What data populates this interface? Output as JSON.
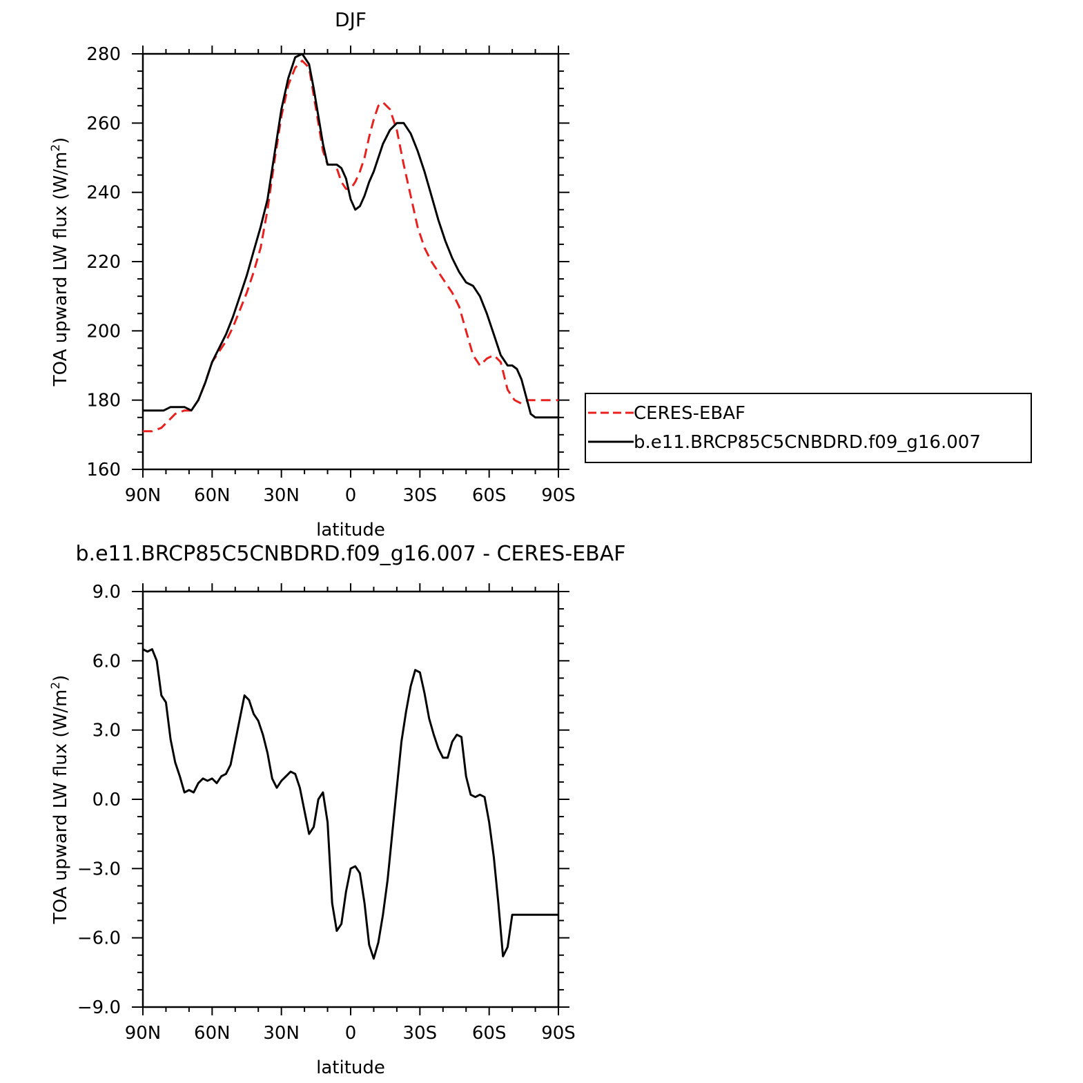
{
  "chart_data": [
    {
      "type": "line",
      "title": "DJF",
      "xlabel": "latitude",
      "ylabel": "TOA upward LW flux (W/m²)",
      "ylabel_main": "TOA upward LW flux (W/m",
      "ylabel_sup": "2",
      "ylabel_close": ")",
      "xlim": [
        90,
        -90
      ],
      "ylim": [
        160,
        280
      ],
      "x_ticks": [
        90,
        60,
        30,
        0,
        -30,
        -60,
        -90
      ],
      "x_tick_labels": [
        "90N",
        "60N",
        "30N",
        "0",
        "30S",
        "60S",
        "90S"
      ],
      "y_ticks": [
        160,
        180,
        200,
        220,
        240,
        260,
        280
      ],
      "y_tick_labels": [
        "160",
        "180",
        "200",
        "220",
        "240",
        "260",
        "280"
      ],
      "grid": false,
      "legend": "right",
      "series": [
        {
          "name": "CERES-EBAF",
          "color": "#e8211f",
          "dash": "dashed",
          "x": [
            90,
            86,
            82,
            79,
            76,
            72,
            69,
            66,
            63,
            60,
            57,
            54,
            51,
            48,
            45,
            42,
            39,
            36,
            33,
            30,
            27,
            24,
            21,
            18,
            16,
            14,
            12,
            10,
            8,
            6,
            4,
            2,
            0,
            -2,
            -4,
            -6,
            -8,
            -10,
            -12,
            -14,
            -17,
            -20,
            -23,
            -26,
            -29,
            -32,
            -35,
            -38,
            -41,
            -44,
            -47,
            -50,
            -53,
            -56,
            -59,
            -62,
            -65,
            -68,
            -71,
            -74,
            -77,
            -80,
            -82,
            -84,
            -86,
            -88,
            -90
          ],
          "y": [
            171,
            171,
            172,
            174,
            176,
            177,
            177,
            180,
            185,
            191,
            194,
            197,
            201,
            206,
            211,
            217,
            224,
            235,
            249,
            262,
            271,
            276,
            278,
            276,
            268,
            260,
            252,
            248,
            248,
            247,
            243,
            241,
            241,
            243,
            246,
            250,
            256,
            261,
            265,
            266,
            264,
            258,
            248,
            239,
            230,
            224,
            220,
            217,
            214,
            211,
            207,
            200,
            193,
            190,
            192,
            193,
            191,
            183,
            180,
            179,
            180,
            180,
            180,
            180,
            180,
            180,
            180
          ]
        },
        {
          "name": "b.e11.BRCP85C5CNBDRD.f09_g16.007",
          "color": "#000000",
          "dash": "solid",
          "x": [
            90,
            87,
            84,
            81,
            78,
            75,
            72,
            69,
            66,
            63,
            60,
            57,
            54,
            51,
            48,
            45,
            42,
            39,
            36,
            33,
            30,
            27,
            24,
            21,
            18,
            16,
            14,
            12,
            10,
            8,
            6,
            4,
            2,
            0,
            -2,
            -4,
            -6,
            -8,
            -10,
            -12,
            -14,
            -17,
            -20,
            -23,
            -26,
            -29,
            -32,
            -35,
            -38,
            -41,
            -44,
            -47,
            -50,
            -53,
            -56,
            -59,
            -62,
            -65,
            -68,
            -70,
            -72,
            -74,
            -76,
            -78,
            -80,
            -82,
            -84,
            -86,
            -88,
            -90
          ],
          "y": [
            177,
            177,
            177,
            177,
            178,
            178,
            178,
            177,
            180,
            185,
            191,
            195,
            199,
            204,
            210,
            216,
            223,
            230,
            238,
            251,
            264,
            273,
            279,
            280,
            277,
            270,
            262,
            254,
            248,
            248,
            248,
            247,
            244,
            238,
            235,
            236,
            239,
            243,
            246,
            250,
            254,
            258,
            260,
            260,
            257,
            252,
            246,
            239,
            232,
            226,
            221,
            217,
            214,
            213,
            210,
            205,
            199,
            193,
            190,
            190,
            189,
            186,
            181,
            176,
            175,
            175,
            175,
            175,
            175,
            175
          ]
        }
      ]
    },
    {
      "type": "line",
      "title": "b.e11.BRCP85C5CNBDRD.f09_g16.007 - CERES-EBAF",
      "xlabel": "latitude",
      "ylabel": "TOA upward LW flux (W/m²)",
      "ylabel_main": "TOA upward LW flux (W/m",
      "ylabel_sup": "2",
      "ylabel_close": ")",
      "xlim": [
        90,
        -90
      ],
      "ylim": [
        -9.0,
        9.0
      ],
      "x_ticks": [
        90,
        60,
        30,
        0,
        -30,
        -60,
        -90
      ],
      "x_tick_labels": [
        "90N",
        "60N",
        "30N",
        "0",
        "30S",
        "60S",
        "90S"
      ],
      "y_ticks": [
        -9,
        -6,
        -3,
        0,
        3,
        6,
        9
      ],
      "y_tick_labels": [
        "−9.0",
        "−6.0",
        "−3.0",
        "0.0",
        "3.0",
        "6.0",
        "9.0"
      ],
      "grid": false,
      "legend": "none",
      "series": [
        {
          "color": "#000000",
          "dash": "solid",
          "x": [
            90,
            88,
            86,
            84,
            82,
            80,
            78,
            76,
            74,
            72,
            70,
            68,
            66,
            64,
            62,
            60,
            58,
            56,
            54,
            52,
            50,
            48,
            46,
            44,
            42,
            40,
            38,
            36,
            34,
            32,
            30,
            28,
            26,
            24,
            22,
            20,
            18,
            16,
            14,
            12,
            10,
            8,
            6,
            4,
            2,
            0,
            -2,
            -4,
            -6,
            -8,
            -10,
            -12,
            -14,
            -16,
            -18,
            -20,
            -22,
            -24,
            -26,
            -28,
            -30,
            -32,
            -34,
            -36,
            -38,
            -40,
            -42,
            -44,
            -46,
            -48,
            -50,
            -52,
            -54,
            -56,
            -58,
            -60,
            -62,
            -64,
            -66,
            -68,
            -70,
            -72,
            -74,
            -76,
            -78,
            -80,
            -82,
            -84,
            -86,
            -88,
            -90
          ],
          "y": [
            6.5,
            6.4,
            6.5,
            6.0,
            4.5,
            4.2,
            2.6,
            1.6,
            1.0,
            0.3,
            0.4,
            0.3,
            0.7,
            0.9,
            0.8,
            0.9,
            0.7,
            1.0,
            1.1,
            1.5,
            2.5,
            3.5,
            4.5,
            4.3,
            3.7,
            3.4,
            2.8,
            2.0,
            0.9,
            0.5,
            0.8,
            1.0,
            1.2,
            1.1,
            0.5,
            -0.5,
            -1.5,
            -1.2,
            0.0,
            0.3,
            -1.0,
            -4.5,
            -5.7,
            -5.4,
            -4.0,
            -3.0,
            -2.9,
            -3.2,
            -4.5,
            -6.3,
            -6.9,
            -6.2,
            -5.0,
            -3.5,
            -1.5,
            0.5,
            2.5,
            3.8,
            4.9,
            5.6,
            5.5,
            4.6,
            3.5,
            2.8,
            2.2,
            1.8,
            1.8,
            2.5,
            2.8,
            2.7,
            1.0,
            0.2,
            0.1,
            0.2,
            0.1,
            -1.0,
            -2.5,
            -4.5,
            -6.8,
            -6.4,
            -5.0,
            -5.0,
            -5.0,
            -5.0,
            -5.0,
            -5.0,
            -5.0,
            -5.0,
            -5.0,
            -5.0,
            -5.0
          ]
        }
      ]
    }
  ]
}
